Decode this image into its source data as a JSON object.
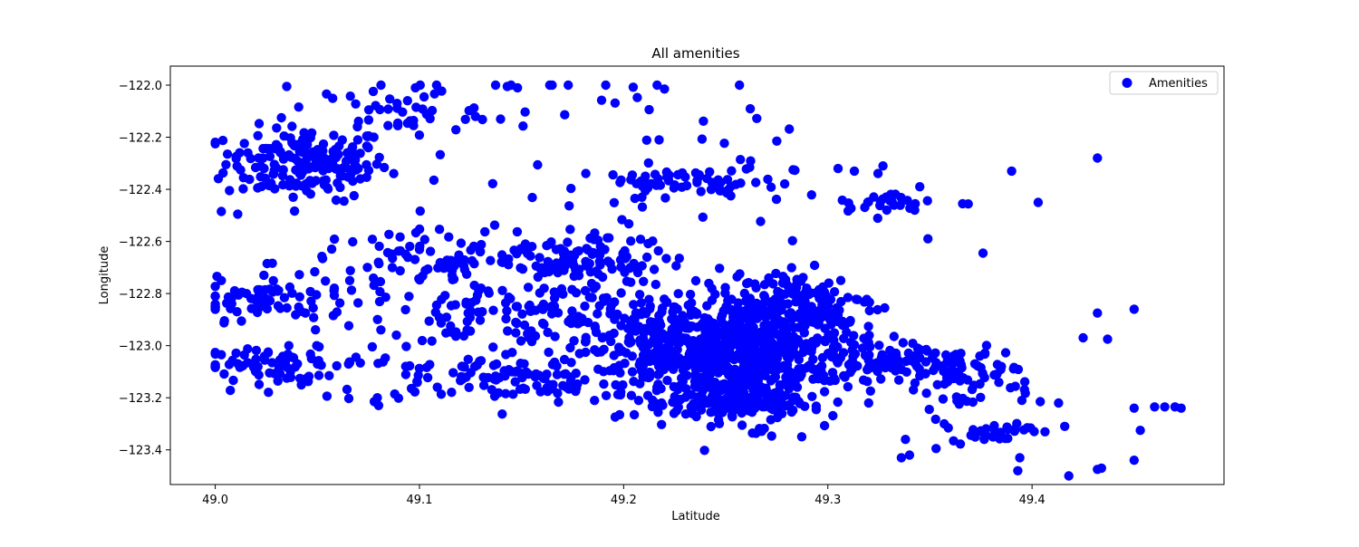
{
  "chart_data": {
    "type": "scatter",
    "title": "All amenities",
    "xlabel": "Latitude",
    "ylabel": "Longitude",
    "xlim": [
      48.978,
      49.494
    ],
    "ylim": [
      -123.533,
      -121.927
    ],
    "xticks": [
      49.0,
      49.1,
      49.2,
      49.3,
      49.4
    ],
    "xtick_labels": [
      "49.0",
      "49.1",
      "49.2",
      "49.3",
      "49.4"
    ],
    "yticks": [
      -122.0,
      -122.2,
      -122.4,
      -122.6,
      -122.8,
      -123.0,
      -123.2,
      -123.4
    ],
    "ytick_labels": [
      "−122.0",
      "−122.2",
      "−122.4",
      "−122.6",
      "−122.8",
      "−123.0",
      "−123.2",
      "−123.4"
    ],
    "grid": false,
    "legend_position": "top-right",
    "series": [
      {
        "name": "Amenities",
        "color": "#0000ff",
        "clusters": [
          {
            "center": [
              49.045,
              -122.3
            ],
            "spread": [
              0.02,
              0.07
            ],
            "count": 180
          },
          {
            "center": [
              49.025,
              -122.82
            ],
            "spread": [
              0.02,
              0.04
            ],
            "count": 70
          },
          {
            "center": [
              49.03,
              -123.07
            ],
            "spread": [
              0.022,
              0.03
            ],
            "count": 60
          },
          {
            "center": [
              49.12,
              -122.68
            ],
            "spread": [
              0.045,
              0.06
            ],
            "count": 120
          },
          {
            "center": [
              49.16,
              -122.88
            ],
            "spread": [
              0.05,
              0.06
            ],
            "count": 160
          },
          {
            "center": [
              49.15,
              -123.12
            ],
            "spread": [
              0.05,
              0.05
            ],
            "count": 140
          },
          {
            "center": [
              49.18,
              -122.68
            ],
            "spread": [
              0.02,
              0.04
            ],
            "count": 60
          },
          {
            "center": [
              49.23,
              -123.02
            ],
            "spread": [
              0.025,
              0.09
            ],
            "count": 320
          },
          {
            "center": [
              49.265,
              -123.05
            ],
            "spread": [
              0.02,
              0.12
            ],
            "count": 420
          },
          {
            "center": [
              49.255,
              -123.22
            ],
            "spread": [
              0.015,
              0.03
            ],
            "count": 120
          },
          {
            "center": [
              49.285,
              -122.84
            ],
            "spread": [
              0.02,
              0.07
            ],
            "count": 140
          },
          {
            "center": [
              49.33,
              -123.05
            ],
            "spread": [
              0.02,
              0.05
            ],
            "count": 90
          },
          {
            "center": [
              49.365,
              -123.12
            ],
            "spread": [
              0.02,
              0.06
            ],
            "count": 60
          },
          {
            "center": [
              49.38,
              -123.33
            ],
            "spread": [
              0.01,
              0.02
            ],
            "count": 30
          },
          {
            "center": [
              49.23,
              -122.37
            ],
            "spread": [
              0.02,
              0.02
            ],
            "count": 50
          },
          {
            "center": [
              49.33,
              -122.45
            ],
            "spread": [
              0.01,
              0.02
            ],
            "count": 25
          },
          {
            "center": [
              49.09,
              -122.1
            ],
            "spread": [
              0.02,
              0.05
            ],
            "count": 40
          },
          {
            "center": [
              49.2,
              -122.35
            ],
            "spread": [
              0.06,
              0.25
            ],
            "count": 80
          }
        ],
        "points": [
          [
            49.035,
            -122.005
          ],
          [
            49.098,
            -122.01
          ],
          [
            49.143,
            -122.005
          ],
          [
            49.148,
            -122.01
          ],
          [
            49.22,
            -122.015
          ],
          [
            49.275,
            -122.215
          ],
          [
            49.432,
            -122.28
          ],
          [
            49.39,
            -122.33
          ],
          [
            49.403,
            -122.45
          ],
          [
            49.366,
            -122.455
          ],
          [
            49.376,
            -122.645
          ],
          [
            49.432,
            -122.875
          ],
          [
            49.45,
            -122.86
          ],
          [
            49.425,
            -122.97
          ],
          [
            49.437,
            -122.975
          ],
          [
            49.45,
            -123.24
          ],
          [
            49.46,
            -123.235
          ],
          [
            49.465,
            -123.235
          ],
          [
            49.47,
            -123.235
          ],
          [
            49.473,
            -123.24
          ],
          [
            49.453,
            -123.325
          ],
          [
            49.416,
            -123.31
          ],
          [
            49.418,
            -123.5
          ],
          [
            49.432,
            -123.475
          ],
          [
            49.434,
            -123.47
          ],
          [
            49.45,
            -123.44
          ],
          [
            49.394,
            -123.43
          ],
          [
            49.393,
            -123.48
          ],
          [
            49.34,
            -123.42
          ],
          [
            49.336,
            -123.43
          ],
          [
            49.338,
            -123.36
          ],
          [
            49.353,
            -123.395
          ],
          [
            49.357,
            -123.3
          ],
          [
            49.345,
            -122.39
          ],
          [
            49.349,
            -122.59
          ],
          [
            49.313,
            -122.33
          ],
          [
            49.327,
            -122.31
          ],
          [
            49.305,
            -122.32
          ],
          [
            49.283,
            -122.325
          ],
          [
            49.245,
            -122.375
          ],
          [
            49.08,
            -123.23
          ],
          [
            49.035,
            -123.125
          ],
          [
            49.003,
            -123.035
          ],
          [
            49.003,
            -122.75
          ],
          [
            49.003,
            -122.485
          ],
          [
            49.016,
            -122.26
          ],
          [
            49.006,
            -122.265
          ],
          [
            49.011,
            -122.495
          ],
          [
            49.198,
            -123.265
          ],
          [
            49.216,
            -123.235
          ],
          [
            49.233,
            -123.235
          ],
          [
            49.303,
            -123.125
          ],
          [
            49.298,
            -123.115
          ],
          [
            49.32,
            -123.22
          ],
          [
            49.395,
            -123.21
          ],
          [
            49.404,
            -123.215
          ],
          [
            49.413,
            -123.22
          ],
          [
            49.372,
            -123.07
          ],
          [
            49.385,
            -123.08
          ],
          [
            49.364,
            -123.1
          ]
        ]
      }
    ]
  }
}
